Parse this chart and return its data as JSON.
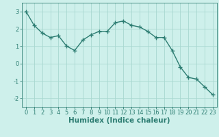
{
  "x": [
    0,
    1,
    2,
    3,
    4,
    5,
    6,
    7,
    8,
    9,
    10,
    11,
    12,
    13,
    14,
    15,
    16,
    17,
    18,
    19,
    20,
    21,
    22,
    23
  ],
  "y": [
    3.0,
    2.2,
    1.75,
    1.5,
    1.6,
    1.0,
    0.75,
    1.35,
    1.65,
    1.85,
    1.85,
    2.35,
    2.45,
    2.2,
    2.1,
    1.85,
    1.5,
    1.5,
    0.75,
    -0.2,
    -0.8,
    -0.9,
    -1.35,
    -1.8
  ],
  "line_color": "#2d7d72",
  "marker": "+",
  "marker_size": 4,
  "marker_linewidth": 1.0,
  "line_width": 1.0,
  "bg_color": "#cef0eb",
  "grid_color": "#a8d8d0",
  "xlabel": "Humidex (Indice chaleur)",
  "ylim": [
    -2.5,
    3.5
  ],
  "xlim": [
    -0.5,
    23.5
  ],
  "yticks": [
    -2,
    -1,
    0,
    1,
    2,
    3
  ],
  "xticks": [
    0,
    1,
    2,
    3,
    4,
    5,
    6,
    7,
    8,
    9,
    10,
    11,
    12,
    13,
    14,
    15,
    16,
    17,
    18,
    19,
    20,
    21,
    22,
    23
  ],
  "xlabel_fontsize": 7.5,
  "tick_fontsize": 6.0,
  "xlabel_color": "#2d7d72",
  "tick_color": "#2d7d72",
  "spine_color": "#2d7d72"
}
